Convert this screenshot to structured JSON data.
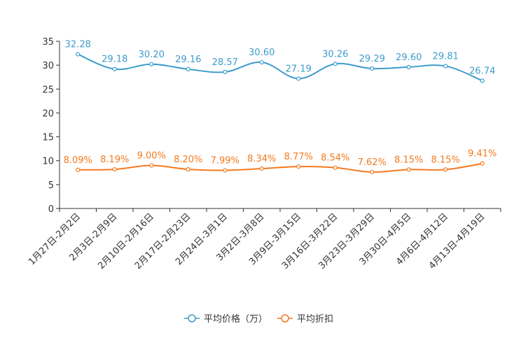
{
  "chart_data": {
    "type": "line",
    "categories": [
      "1月27日-2月2日",
      "2月3日-2月9日",
      "2月10日-2月16日",
      "2月17日-2月23日",
      "2月24日-3月1日",
      "3月2日-3月8日",
      "3月9日-3月15日",
      "3月16日-3月22日",
      "3月23日-3月29日",
      "3月30日-4月5日",
      "4月6日-4月12日",
      "4月13日-4月19日"
    ],
    "ylim": [
      0,
      35
    ],
    "yticks": [
      0,
      5,
      10,
      15,
      20,
      25,
      30,
      35
    ],
    "series": [
      {
        "name": "平均价格（万）",
        "color": "#3d9ccb",
        "values": [
          32.28,
          29.18,
          30.2,
          29.16,
          28.57,
          30.6,
          27.19,
          30.26,
          29.29,
          29.6,
          29.81,
          26.74
        ],
        "labels": [
          "32.28",
          "29.18",
          "30.20",
          "29.16",
          "28.57",
          "30.60",
          "27.19",
          "30.26",
          "29.29",
          "29.60",
          "29.81",
          "26.74"
        ]
      },
      {
        "name": "平均折扣",
        "color": "#f47a1f",
        "values": [
          8.09,
          8.19,
          9.0,
          8.2,
          7.99,
          8.34,
          8.77,
          8.54,
          7.62,
          8.15,
          8.15,
          9.41
        ],
        "labels": [
          "8.09%",
          "8.19%",
          "9.00%",
          "8.20%",
          "7.99%",
          "8.34%",
          "8.77%",
          "8.54%",
          "7.62%",
          "8.15%",
          "8.15%",
          "9.41%"
        ]
      }
    ],
    "legend_position": "bottom-center"
  }
}
